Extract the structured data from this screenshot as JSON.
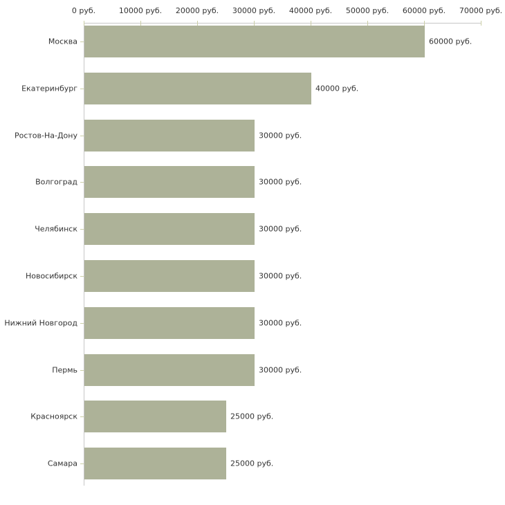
{
  "chart_data": {
    "type": "bar",
    "orientation": "horizontal",
    "title": "",
    "xlabel": "",
    "ylabel": "",
    "unit": "руб.",
    "xlim": [
      0,
      70000
    ],
    "grid": false,
    "legend": "none",
    "categories": [
      "Москва",
      "Екатеринбург",
      "Ростов-На-Дону",
      "Волгоград",
      "Челябинск",
      "Новосибирск",
      "Нижний Новгород",
      "Пермь",
      "Красноярск",
      "Самара"
    ],
    "values": [
      60000,
      40000,
      30000,
      30000,
      30000,
      30000,
      30000,
      30000,
      25000,
      25000
    ],
    "value_labels": [
      "60000 руб.",
      "40000 руб.",
      "30000 руб.",
      "30000 руб.",
      "30000 руб.",
      "30000 руб.",
      "30000 руб.",
      "30000 руб.",
      "25000 руб.",
      "25000 руб."
    ],
    "x_tick_labels": [
      "0 руб.",
      "10000 руб.",
      "20000 руб.",
      "30000 руб.",
      "40000 руб.",
      "50000 руб.",
      "60000 руб.",
      "70000 руб."
    ],
    "x_tick_values": [
      0,
      10000,
      20000,
      30000,
      40000,
      50000,
      60000,
      70000
    ],
    "colors": {
      "bar": "#adb298",
      "axis": "#c6c6c6",
      "tick": "#cbcea6",
      "text": "#333333",
      "background": "#ffffff"
    }
  }
}
